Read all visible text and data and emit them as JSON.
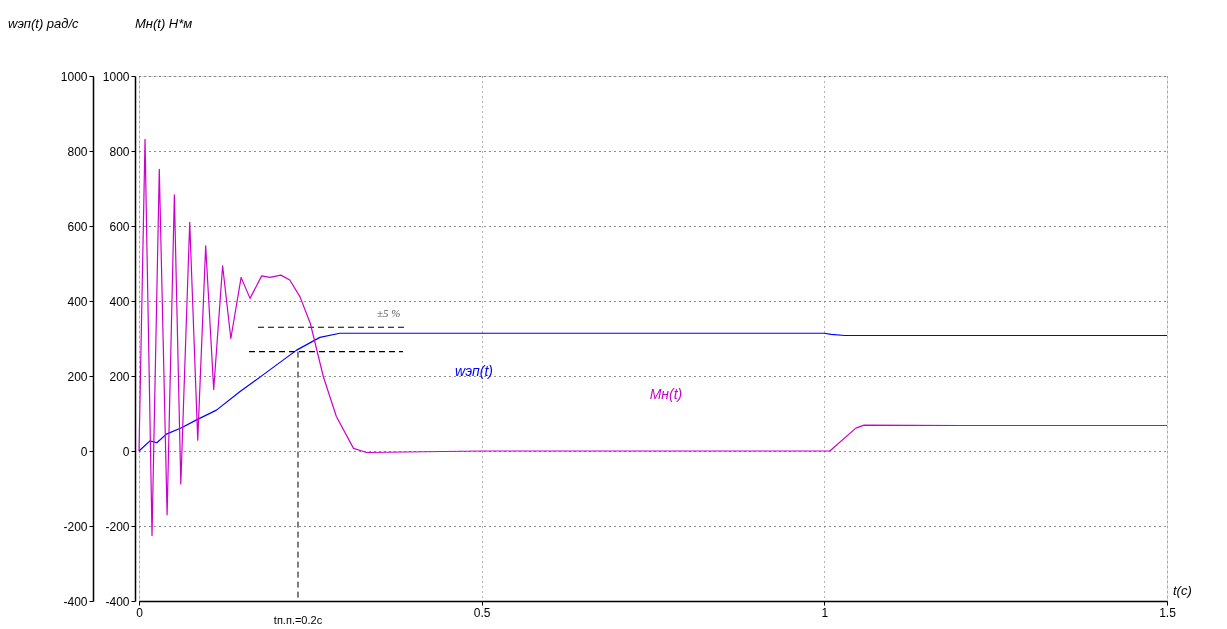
{
  "chart_data": {
    "type": "line",
    "xlabel": "t(c)",
    "ylabel": "wэп(t)  рад/с",
    "y2label": "Mн(t)  Н*м",
    "xlim": [
      0,
      1.5
    ],
    "xticks": [
      0,
      0.5,
      1,
      1.5
    ],
    "ylim": [
      -400,
      1000
    ],
    "yticks": [
      -400,
      -200,
      0,
      200,
      400,
      600,
      800,
      1000
    ],
    "y2lim": [
      -400,
      1000
    ],
    "y2ticks": [
      -400,
      -200,
      0,
      200,
      400,
      600,
      800,
      1000
    ],
    "grid": true,
    "line_style": "solid",
    "marker": "none",
    "series": [
      {
        "name": "wэп(t)",
        "color": "#0000ff",
        "x": [
          0,
          0.016,
          0.026,
          0.04,
          0.062,
          0.084,
          0.113,
          0.147,
          0.181,
          0.23,
          0.264,
          0.293,
          0.5,
          1.0,
          1.01,
          1.03,
          1.5
        ],
        "values": [
          0,
          27,
          22,
          45,
          62,
          83,
          109,
          158,
          203,
          269,
          303,
          314,
          314,
          314,
          311,
          308,
          308
        ]
      },
      {
        "name": "Mн(t)",
        "color": "#cc00cc",
        "axis": "y2",
        "x": [
          0,
          0.0088,
          0.019,
          0.0296,
          0.041,
          0.0516,
          0.061,
          0.074,
          0.0857,
          0.0973,
          0.109,
          0.122,
          0.134,
          0.149,
          0.162,
          0.179,
          0.191,
          0.207,
          0.22,
          0.235,
          0.25,
          0.269,
          0.288,
          0.313,
          0.332,
          0.5,
          0.8,
          1.008,
          1.046,
          1.058,
          1.2,
          1.5
        ],
        "values": [
          0,
          831,
          -225,
          751,
          -170,
          683,
          -88,
          610,
          29,
          547,
          164,
          494,
          300,
          463,
          407,
          467,
          463,
          469,
          456,
          411,
          340,
          198,
          92,
          7,
          -4,
          0,
          0,
          0,
          61,
          69,
          68,
          68
        ]
      }
    ],
    "ref_lines": [
      {
        "axis": "y",
        "value": 330,
        "color": "#000000",
        "line_style": "dashed"
      },
      {
        "axis": "y",
        "value": 265,
        "color": "#000000",
        "line_style": "dashed"
      },
      {
        "axis": "x",
        "value": 0.232,
        "label": "tп.п.=0.2с",
        "color": "#000000",
        "line_style": "dashed"
      }
    ],
    "annotations": [
      "±5 %"
    ]
  }
}
